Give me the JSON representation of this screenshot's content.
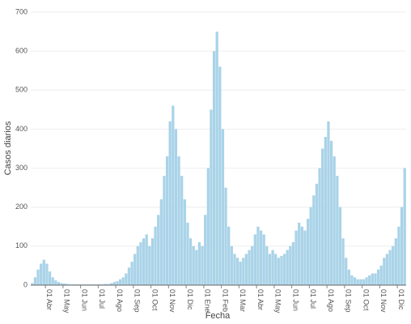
{
  "chart_data": {
    "type": "bar",
    "x_label": "Fecha",
    "y_label": "Casos diarios",
    "color": "#a9d3e8",
    "categories": [
      null,
      null,
      null,
      null,
      null,
      "01 Abr",
      null,
      null,
      null,
      null,
      null,
      "01 May",
      null,
      null,
      null,
      null,
      null,
      "01 Jun",
      null,
      null,
      null,
      null,
      null,
      "01 Jul",
      null,
      null,
      null,
      null,
      null,
      "01 Ago",
      null,
      null,
      null,
      null,
      null,
      "01 Sep",
      null,
      null,
      null,
      null,
      null,
      "01 Oct",
      null,
      null,
      null,
      null,
      null,
      "01 Nov",
      null,
      null,
      null,
      null,
      null,
      "01 Dic",
      null,
      null,
      null,
      null,
      null,
      "01 Ene",
      null,
      null,
      null,
      null,
      null,
      "01 Feb",
      null,
      null,
      null,
      null,
      null,
      "01 Mar",
      null,
      null,
      null,
      null,
      null,
      "01 Abr",
      null,
      null,
      null,
      null,
      null,
      "01 May",
      null,
      null,
      null,
      null,
      null,
      "01 Jun",
      null,
      null,
      null,
      null,
      null,
      "01 Jul",
      null,
      null,
      null,
      null,
      null,
      "01 Ago",
      null,
      null,
      null,
      null,
      null,
      "01 Sep",
      null,
      null,
      null,
      null,
      null,
      "01 Oct",
      null,
      null,
      null,
      null,
      null,
      "01 Nov",
      null,
      null,
      null,
      null,
      null,
      "01 Dic",
      null,
      null
    ],
    "values": [
      5,
      20,
      40,
      55,
      65,
      55,
      35,
      20,
      12,
      8,
      5,
      4,
      3,
      2,
      2,
      2,
      2,
      2,
      2,
      2,
      2,
      2,
      2,
      2,
      2,
      3,
      3,
      5,
      8,
      10,
      15,
      20,
      30,
      45,
      60,
      80,
      100,
      110,
      120,
      130,
      100,
      120,
      150,
      180,
      220,
      280,
      330,
      420,
      460,
      400,
      330,
      280,
      220,
      160,
      120,
      100,
      90,
      110,
      100,
      180,
      300,
      450,
      600,
      650,
      560,
      400,
      250,
      150,
      100,
      80,
      70,
      60,
      70,
      80,
      90,
      100,
      130,
      150,
      140,
      130,
      100,
      80,
      90,
      80,
      70,
      75,
      80,
      90,
      100,
      110,
      140,
      160,
      150,
      140,
      170,
      200,
      230,
      260,
      300,
      350,
      380,
      420,
      370,
      330,
      280,
      200,
      120,
      70,
      40,
      25,
      20,
      15,
      15,
      15,
      20,
      25,
      30,
      30,
      40,
      50,
      70,
      80,
      90,
      100,
      120,
      150,
      200,
      300
    ],
    "ylim": [
      0,
      700
    ],
    "yticks": [
      0,
      100,
      200,
      300,
      400,
      500,
      600,
      700
    ],
    "grid": true
  }
}
